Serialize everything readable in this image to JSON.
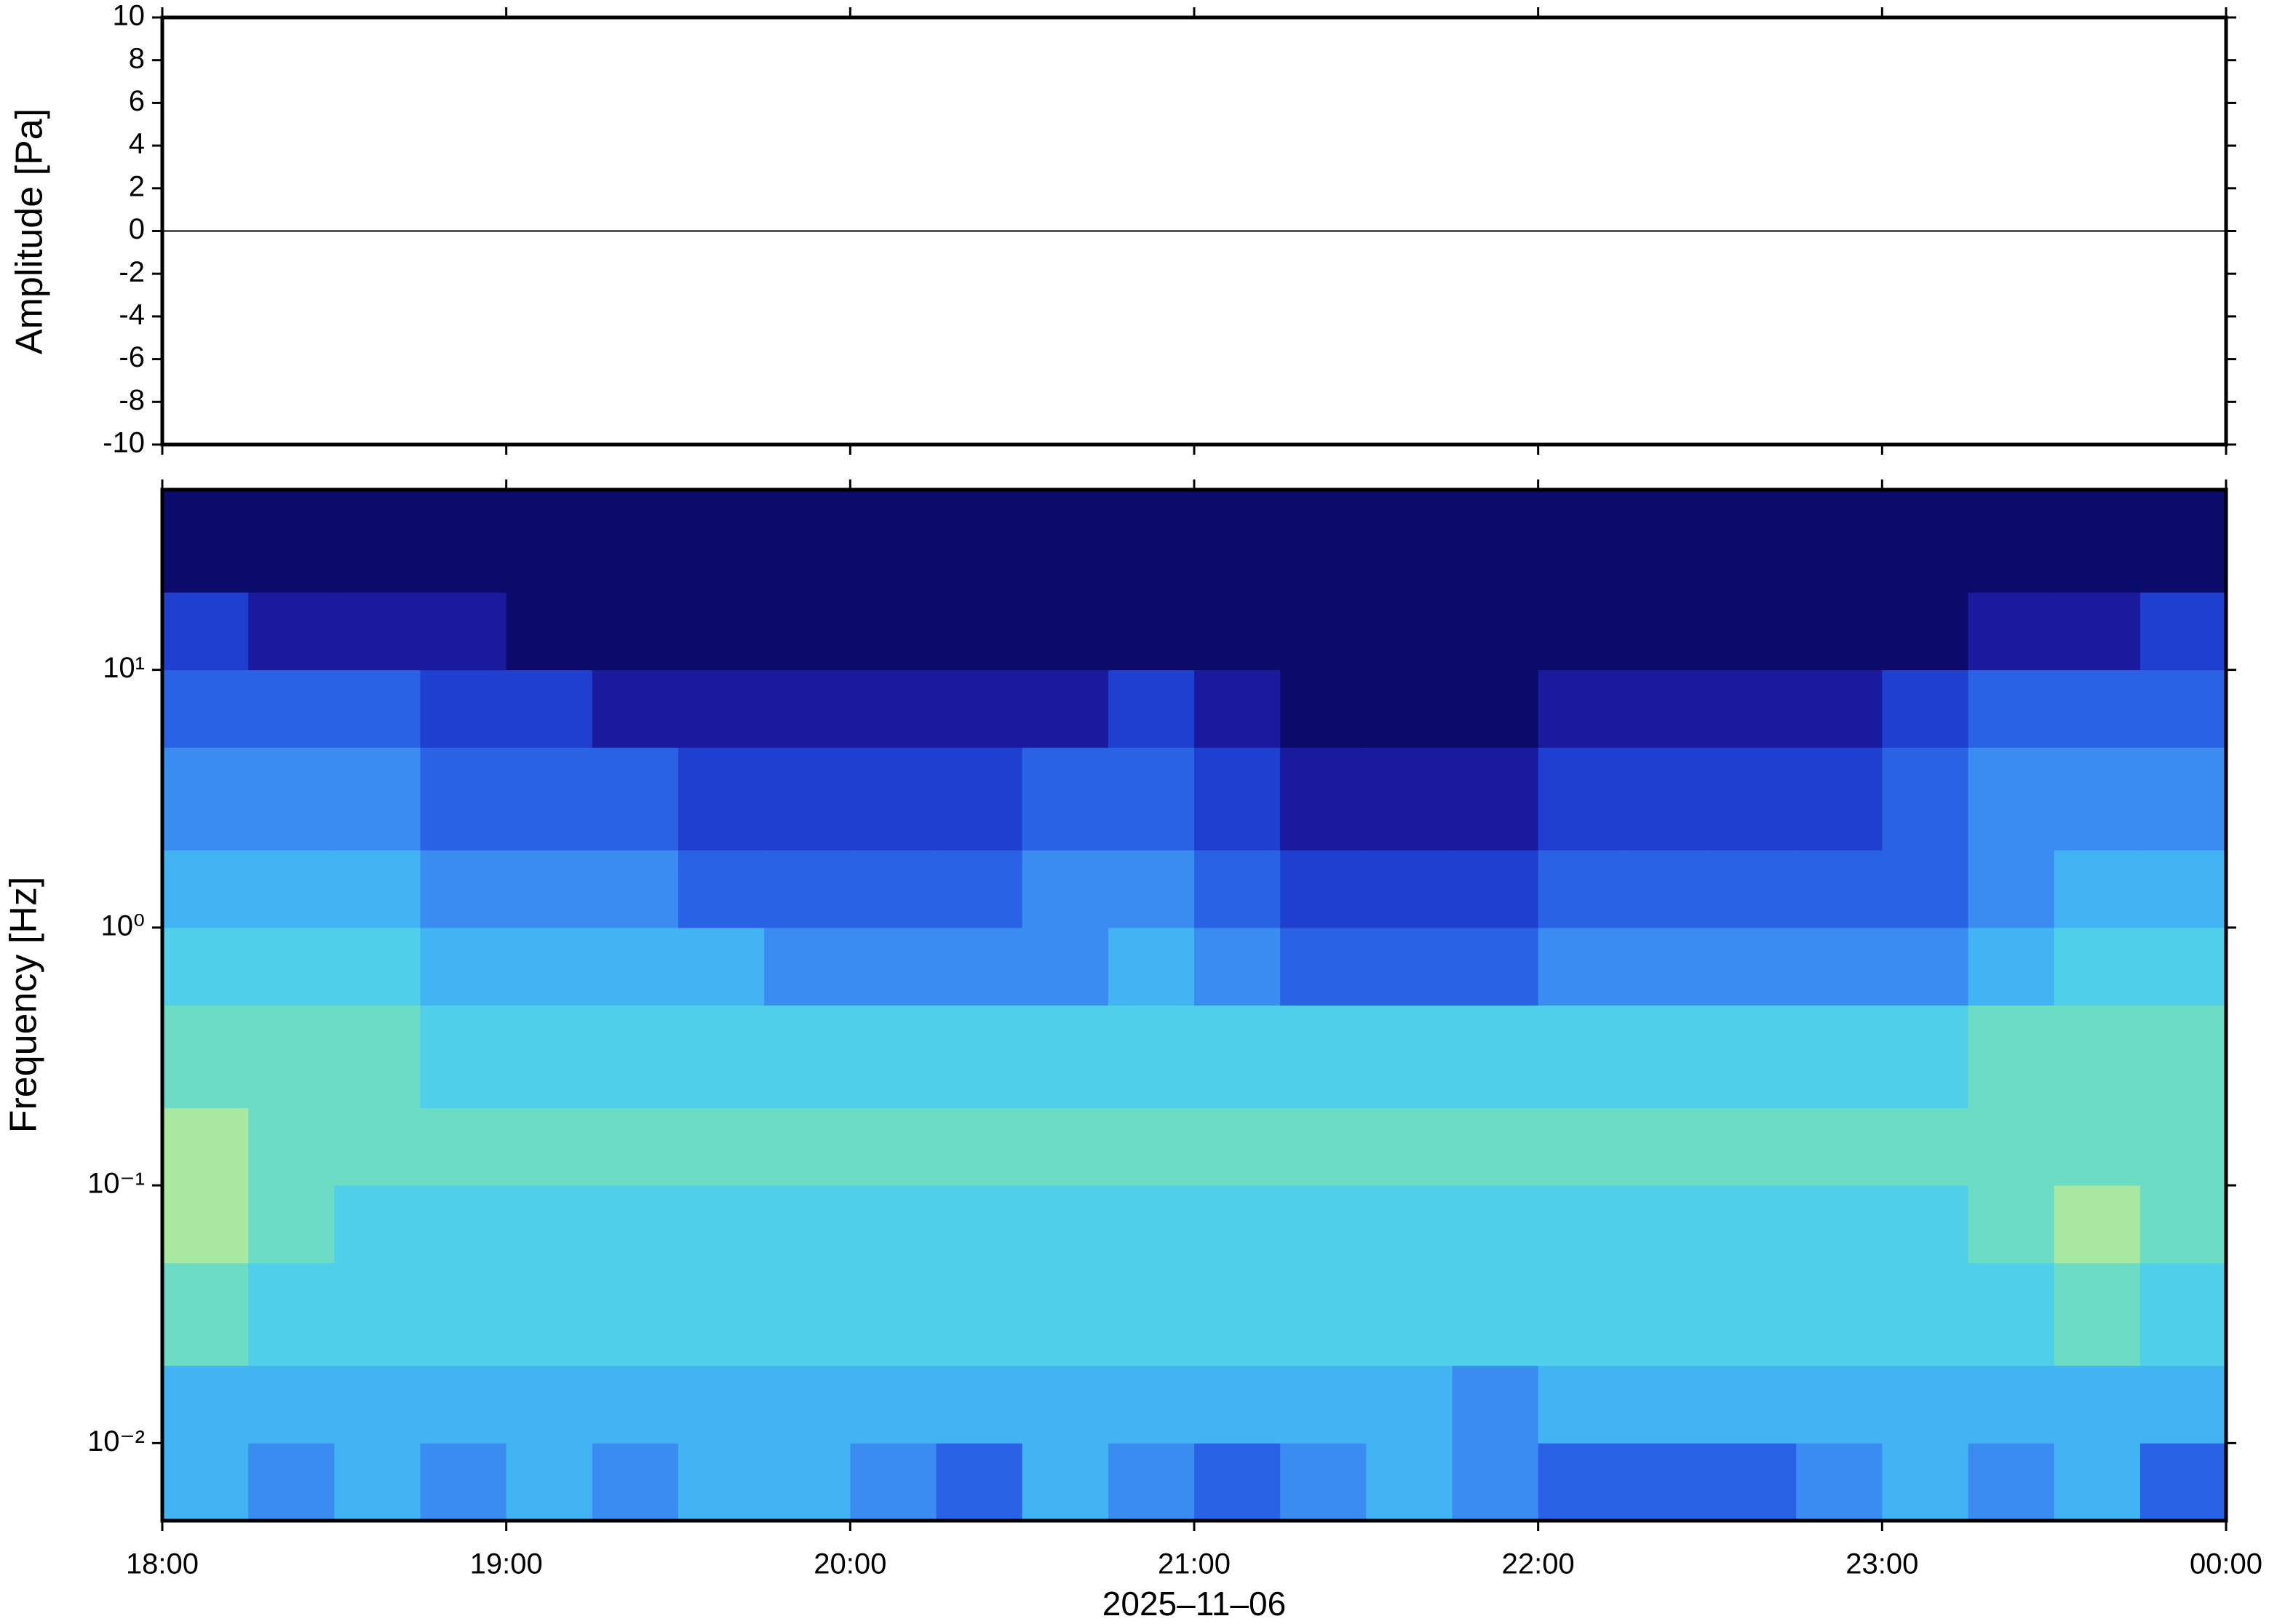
{
  "chart_data": [
    {
      "type": "line",
      "ylabel": "Amplitude [Pa]",
      "x": [
        18,
        18.5,
        19,
        19.5,
        20,
        20.5,
        21,
        21.5,
        22,
        22.5,
        23,
        23.5,
        24
      ],
      "values": [
        0,
        0,
        0,
        0,
        0,
        0,
        0,
        0,
        0,
        0,
        0,
        0,
        0
      ],
      "color": "#000000",
      "xlim": [
        18,
        24
      ],
      "xticks": [
        18,
        19,
        20,
        21,
        22,
        23,
        24
      ],
      "ylim": [
        -10,
        10
      ],
      "yticks": [
        -10,
        -8,
        -6,
        -4,
        -2,
        0,
        2,
        4,
        6,
        8,
        10
      ]
    },
    {
      "type": "heatmap",
      "ylabel": "Frequency [Hz]",
      "xlabel": "2025–11–06",
      "ylog": true,
      "xlim": [
        18,
        24
      ],
      "xticks": [
        {
          "value": 18,
          "label": "18:00"
        },
        {
          "value": 19,
          "label": "19:00"
        },
        {
          "value": 20,
          "label": "20:00"
        },
        {
          "value": 21,
          "label": "21:00"
        },
        {
          "value": 22,
          "label": "22:00"
        },
        {
          "value": 23,
          "label": "23:00"
        },
        {
          "value": 24,
          "label": "00:00"
        }
      ],
      "ylim": [
        0.005,
        50
      ],
      "yticks": [
        {
          "value": 0.01,
          "label": "10⁻²"
        },
        {
          "value": 0.1,
          "label": "10⁻¹"
        },
        {
          "value": 1,
          "label": "10⁰"
        },
        {
          "value": 10,
          "label": "10¹"
        }
      ],
      "x_edges": [
        18,
        18.25,
        18.5,
        18.75,
        19,
        19.25,
        19.5,
        19.75,
        20,
        20.25,
        20.5,
        20.75,
        21,
        21.25,
        21.5,
        21.75,
        22,
        22.25,
        22.5,
        22.75,
        23,
        23.25,
        23.5,
        23.75,
        24
      ],
      "y_edges": [
        0.005,
        0.01,
        0.02,
        0.05,
        0.1,
        0.2,
        0.5,
        1,
        2,
        5,
        10,
        20,
        50
      ],
      "colors": [
        "#0b0b6b",
        "#1a1a9e",
        "#1f3fd0",
        "#2a62e6",
        "#3a8cf0",
        "#42b4f4",
        "#50cfea",
        "#6cdcc4",
        "#a8e8a0",
        "#e0f080",
        "#f8f070"
      ],
      "z": [
        [
          5,
          4,
          5,
          4,
          5,
          4,
          5,
          5,
          4,
          3,
          5,
          4,
          3,
          4,
          5,
          4,
          3,
          3,
          3,
          4,
          5,
          4,
          5,
          3
        ],
        [
          5,
          5,
          5,
          5,
          5,
          5,
          5,
          5,
          5,
          5,
          5,
          5,
          5,
          5,
          5,
          4,
          5,
          5,
          5,
          5,
          5,
          5,
          5,
          5
        ],
        [
          7,
          6,
          6,
          6,
          6,
          6,
          6,
          6,
          6,
          6,
          6,
          6,
          6,
          6,
          6,
          6,
          6,
          6,
          6,
          6,
          6,
          6,
          7,
          6
        ],
        [
          8,
          7,
          6,
          6,
          6,
          6,
          6,
          6,
          6,
          6,
          6,
          6,
          6,
          6,
          6,
          6,
          6,
          6,
          6,
          6,
          6,
          7,
          8,
          7
        ],
        [
          8,
          7,
          7,
          7,
          7,
          7,
          7,
          7,
          7,
          7,
          7,
          7,
          7,
          7,
          7,
          7,
          7,
          7,
          7,
          7,
          7,
          7,
          7,
          7
        ],
        [
          7,
          7,
          7,
          6,
          6,
          6,
          6,
          6,
          6,
          6,
          6,
          6,
          6,
          6,
          6,
          6,
          6,
          6,
          6,
          6,
          6,
          7,
          7,
          7
        ],
        [
          6,
          6,
          6,
          5,
          5,
          5,
          5,
          4,
          4,
          4,
          4,
          5,
          4,
          3,
          3,
          3,
          4,
          4,
          4,
          4,
          4,
          5,
          6,
          6
        ],
        [
          5,
          5,
          5,
          4,
          4,
          4,
          3,
          3,
          3,
          3,
          4,
          4,
          3,
          2,
          2,
          2,
          3,
          3,
          3,
          3,
          3,
          4,
          5,
          5
        ],
        [
          4,
          4,
          4,
          3,
          3,
          3,
          2,
          2,
          2,
          2,
          3,
          3,
          2,
          1,
          1,
          1,
          2,
          2,
          2,
          2,
          3,
          4,
          4,
          4
        ],
        [
          3,
          3,
          3,
          2,
          2,
          1,
          1,
          1,
          1,
          1,
          1,
          2,
          1,
          0,
          0,
          0,
          1,
          1,
          1,
          1,
          2,
          3,
          3,
          3
        ],
        [
          2,
          1,
          1,
          1,
          0,
          0,
          0,
          0,
          0,
          0,
          0,
          0,
          0,
          0,
          0,
          0,
          0,
          0,
          0,
          0,
          0,
          1,
          1,
          2
        ],
        [
          0,
          0,
          0,
          0,
          0,
          0,
          0,
          0,
          0,
          0,
          0,
          0,
          0,
          0,
          0,
          0,
          0,
          0,
          0,
          0,
          0,
          0,
          0,
          0
        ]
      ]
    }
  ]
}
